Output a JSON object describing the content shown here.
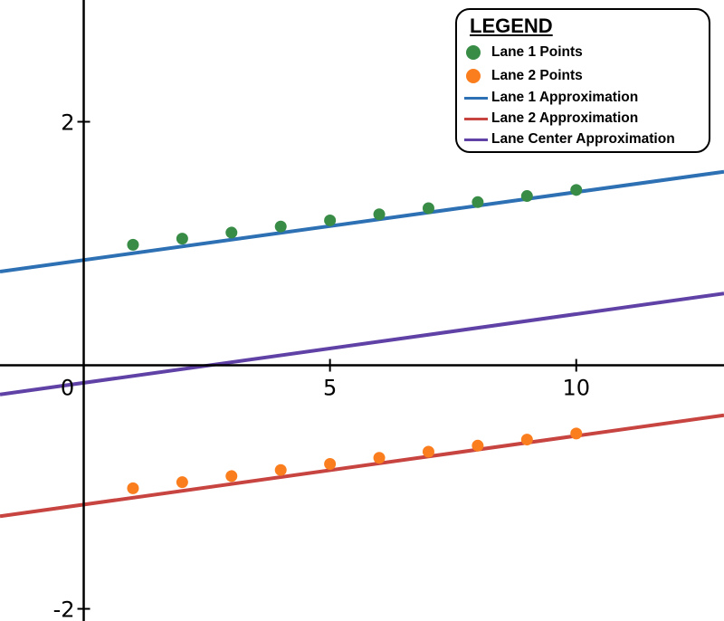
{
  "chart_data": {
    "type": "scatter",
    "title": "",
    "xlabel": "",
    "ylabel": "",
    "xlim": [
      -1.7,
      13
    ],
    "ylim": [
      -2.1,
      3.0
    ],
    "x_ticks": [
      0,
      5,
      10
    ],
    "y_ticks": [
      2,
      -2
    ],
    "x_tick_labels": [
      "0",
      "5",
      "10"
    ],
    "y_tick_labels": [
      "2",
      "-2"
    ],
    "grid": false,
    "legend_position": "top-right",
    "legend_title": "LEGEND",
    "series": [
      {
        "name": "Lane 1 Points",
        "kind": "points",
        "color": "#388c46",
        "x": [
          1,
          2,
          3,
          4,
          5,
          6,
          7,
          8,
          9,
          10
        ],
        "y": [
          0.99,
          1.04,
          1.09,
          1.14,
          1.19,
          1.24,
          1.29,
          1.34,
          1.39,
          1.44
        ]
      },
      {
        "name": "Lane 2 Points",
        "kind": "points",
        "color": "#fa7e1e",
        "x": [
          1,
          2,
          3,
          4,
          5,
          6,
          7,
          8,
          9,
          10
        ],
        "y": [
          -1.01,
          -0.96,
          -0.91,
          -0.86,
          -0.81,
          -0.76,
          -0.71,
          -0.66,
          -0.61,
          -0.56
        ]
      },
      {
        "name": "Lane 1 Approximation",
        "kind": "line",
        "color": "#2d70b3",
        "x": [
          -1.7,
          13
        ],
        "y": [
          0.77,
          1.59
        ]
      },
      {
        "name": "Lane 2 Approximation",
        "kind": "line",
        "color": "#c74440",
        "x": [
          -1.7,
          13
        ],
        "y": [
          -1.24,
          -0.41
        ]
      },
      {
        "name": "Lane Center Approximation",
        "kind": "line",
        "color": "#6042a6",
        "x": [
          -1.7,
          13
        ],
        "y": [
          -0.24,
          0.59
        ]
      }
    ]
  }
}
